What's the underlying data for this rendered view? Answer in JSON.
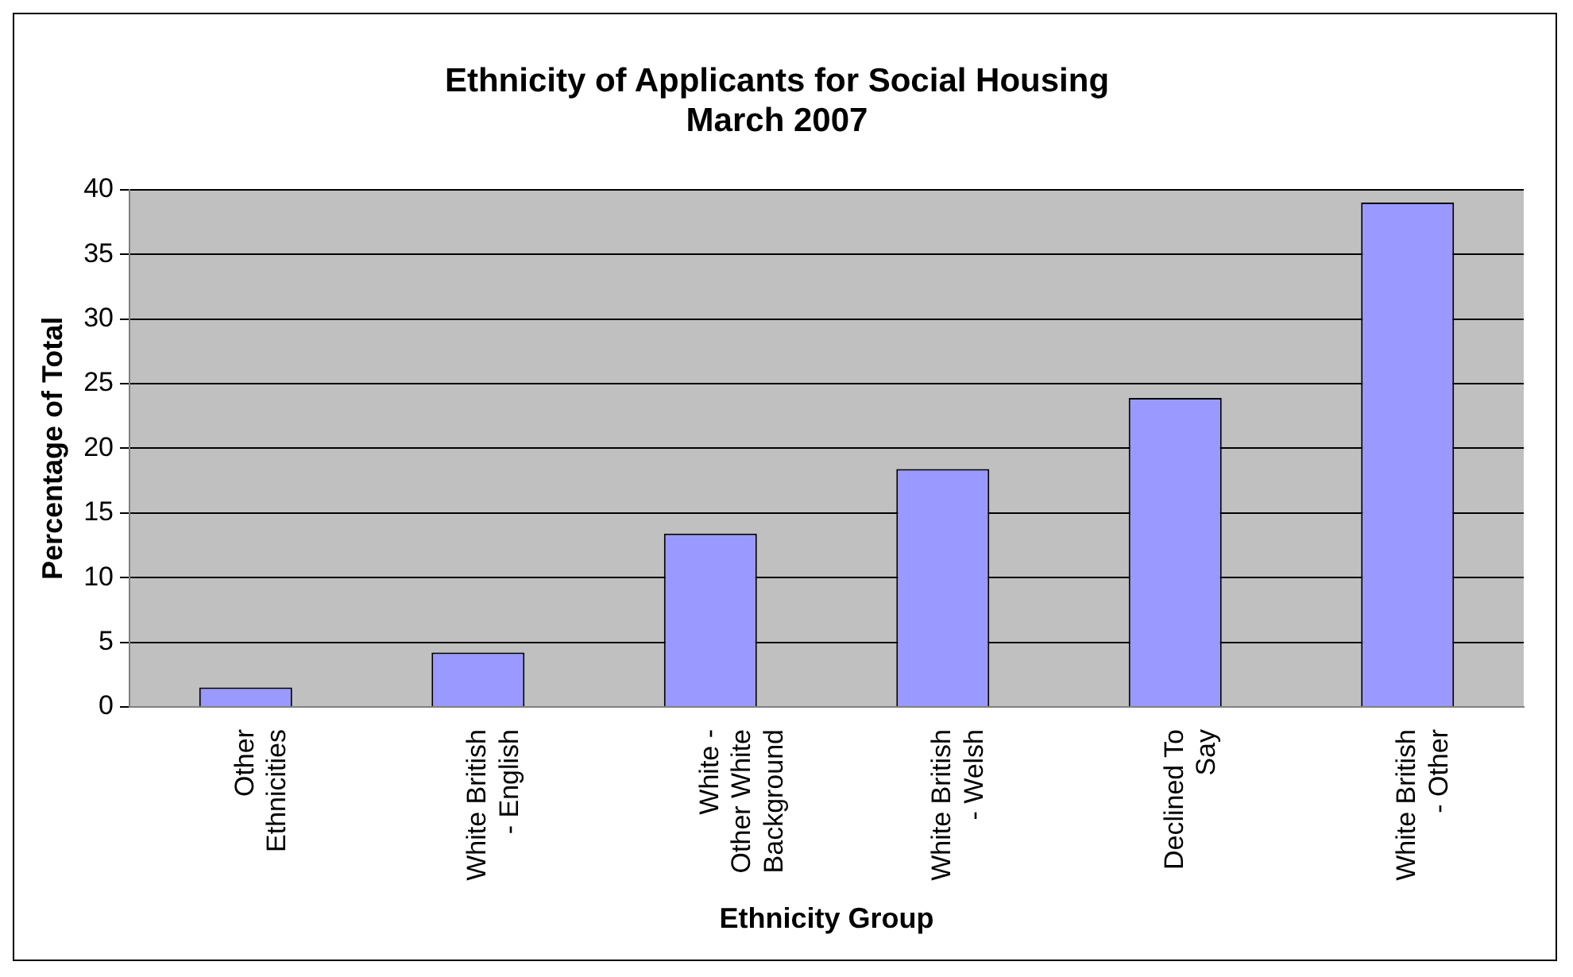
{
  "chart_data": {
    "type": "bar",
    "title": "Ethnicity of Applicants for Social Housing\nMarch 2007",
    "xlabel": "Ethnicity Group",
    "ylabel": "Percentage of Total",
    "categories": [
      "Other\nEthnicities",
      "White British\n- English",
      "White -\nOther White\nBackground",
      "White British\n- Welsh",
      "Declined To\nSay",
      "White British\n- Other"
    ],
    "values": [
      1.5,
      4.2,
      13.4,
      18.4,
      23.9,
      39.0
    ],
    "color": "#9999ff",
    "ylim": [
      0,
      40
    ],
    "yticks": [
      0,
      5,
      10,
      15,
      20,
      25,
      30,
      35,
      40
    ],
    "grid": "y",
    "legend": false
  }
}
